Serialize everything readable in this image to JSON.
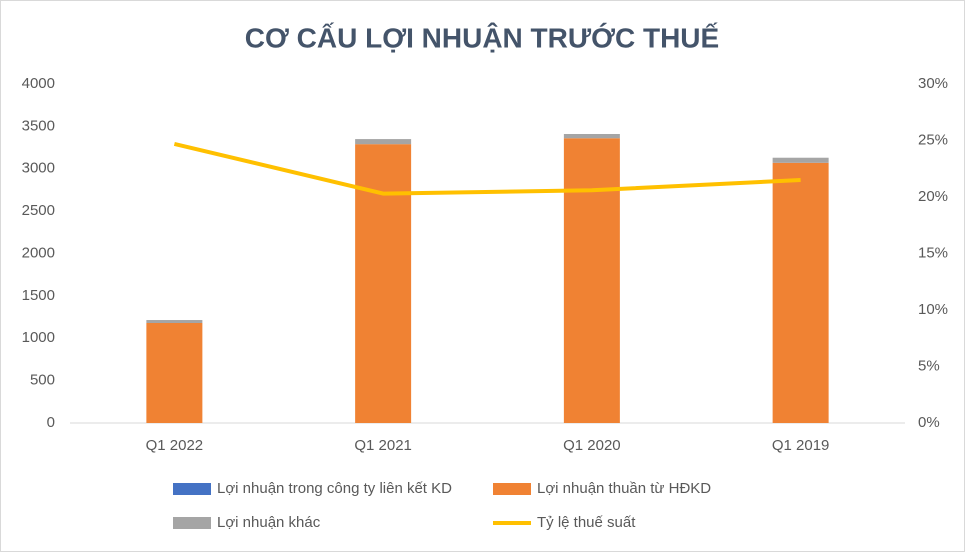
{
  "chart_data": {
    "type": "bar-line",
    "title": "CƠ CẤU LỢI NHUẬN TRƯỚC THUẾ",
    "categories": [
      "Q1 2022",
      "Q1 2021",
      "Q1 2020",
      "Q1 2019"
    ],
    "series": [
      {
        "name": "Lợi nhuận trong công ty liên kết KD",
        "color": "#4472c4",
        "type": "bar",
        "values": [
          0,
          0,
          0,
          0
        ]
      },
      {
        "name": "Lợi nhuận thuần từ HĐKD",
        "color": "#f08233",
        "type": "bar",
        "values": [
          1180,
          3290,
          3360,
          3070
        ]
      },
      {
        "name": "Lợi nhuận khác",
        "color": "#a5a5a5",
        "type": "bar",
        "values": [
          35,
          60,
          50,
          60
        ]
      },
      {
        "name": "Tỷ lệ thuế suất",
        "color": "#ffc000",
        "type": "line",
        "axis": "y2",
        "values": [
          24.7,
          20.3,
          20.6,
          21.5
        ]
      }
    ],
    "ylim": [
      0,
      4000
    ],
    "yticks": [
      0,
      500,
      1000,
      1500,
      2000,
      2500,
      3000,
      3500,
      4000
    ],
    "y2lim": [
      0,
      30
    ],
    "y2ticks": [
      {
        "value": 0,
        "label": "0%"
      },
      {
        "value": 5,
        "label": "5%"
      },
      {
        "value": 10,
        "label": "10%"
      },
      {
        "value": 15,
        "label": "15%"
      },
      {
        "value": 20,
        "label": "20%"
      },
      {
        "value": 25,
        "label": "25%"
      },
      {
        "value": 30,
        "label": "30%"
      }
    ],
    "grid": false,
    "legend": "bottom"
  }
}
